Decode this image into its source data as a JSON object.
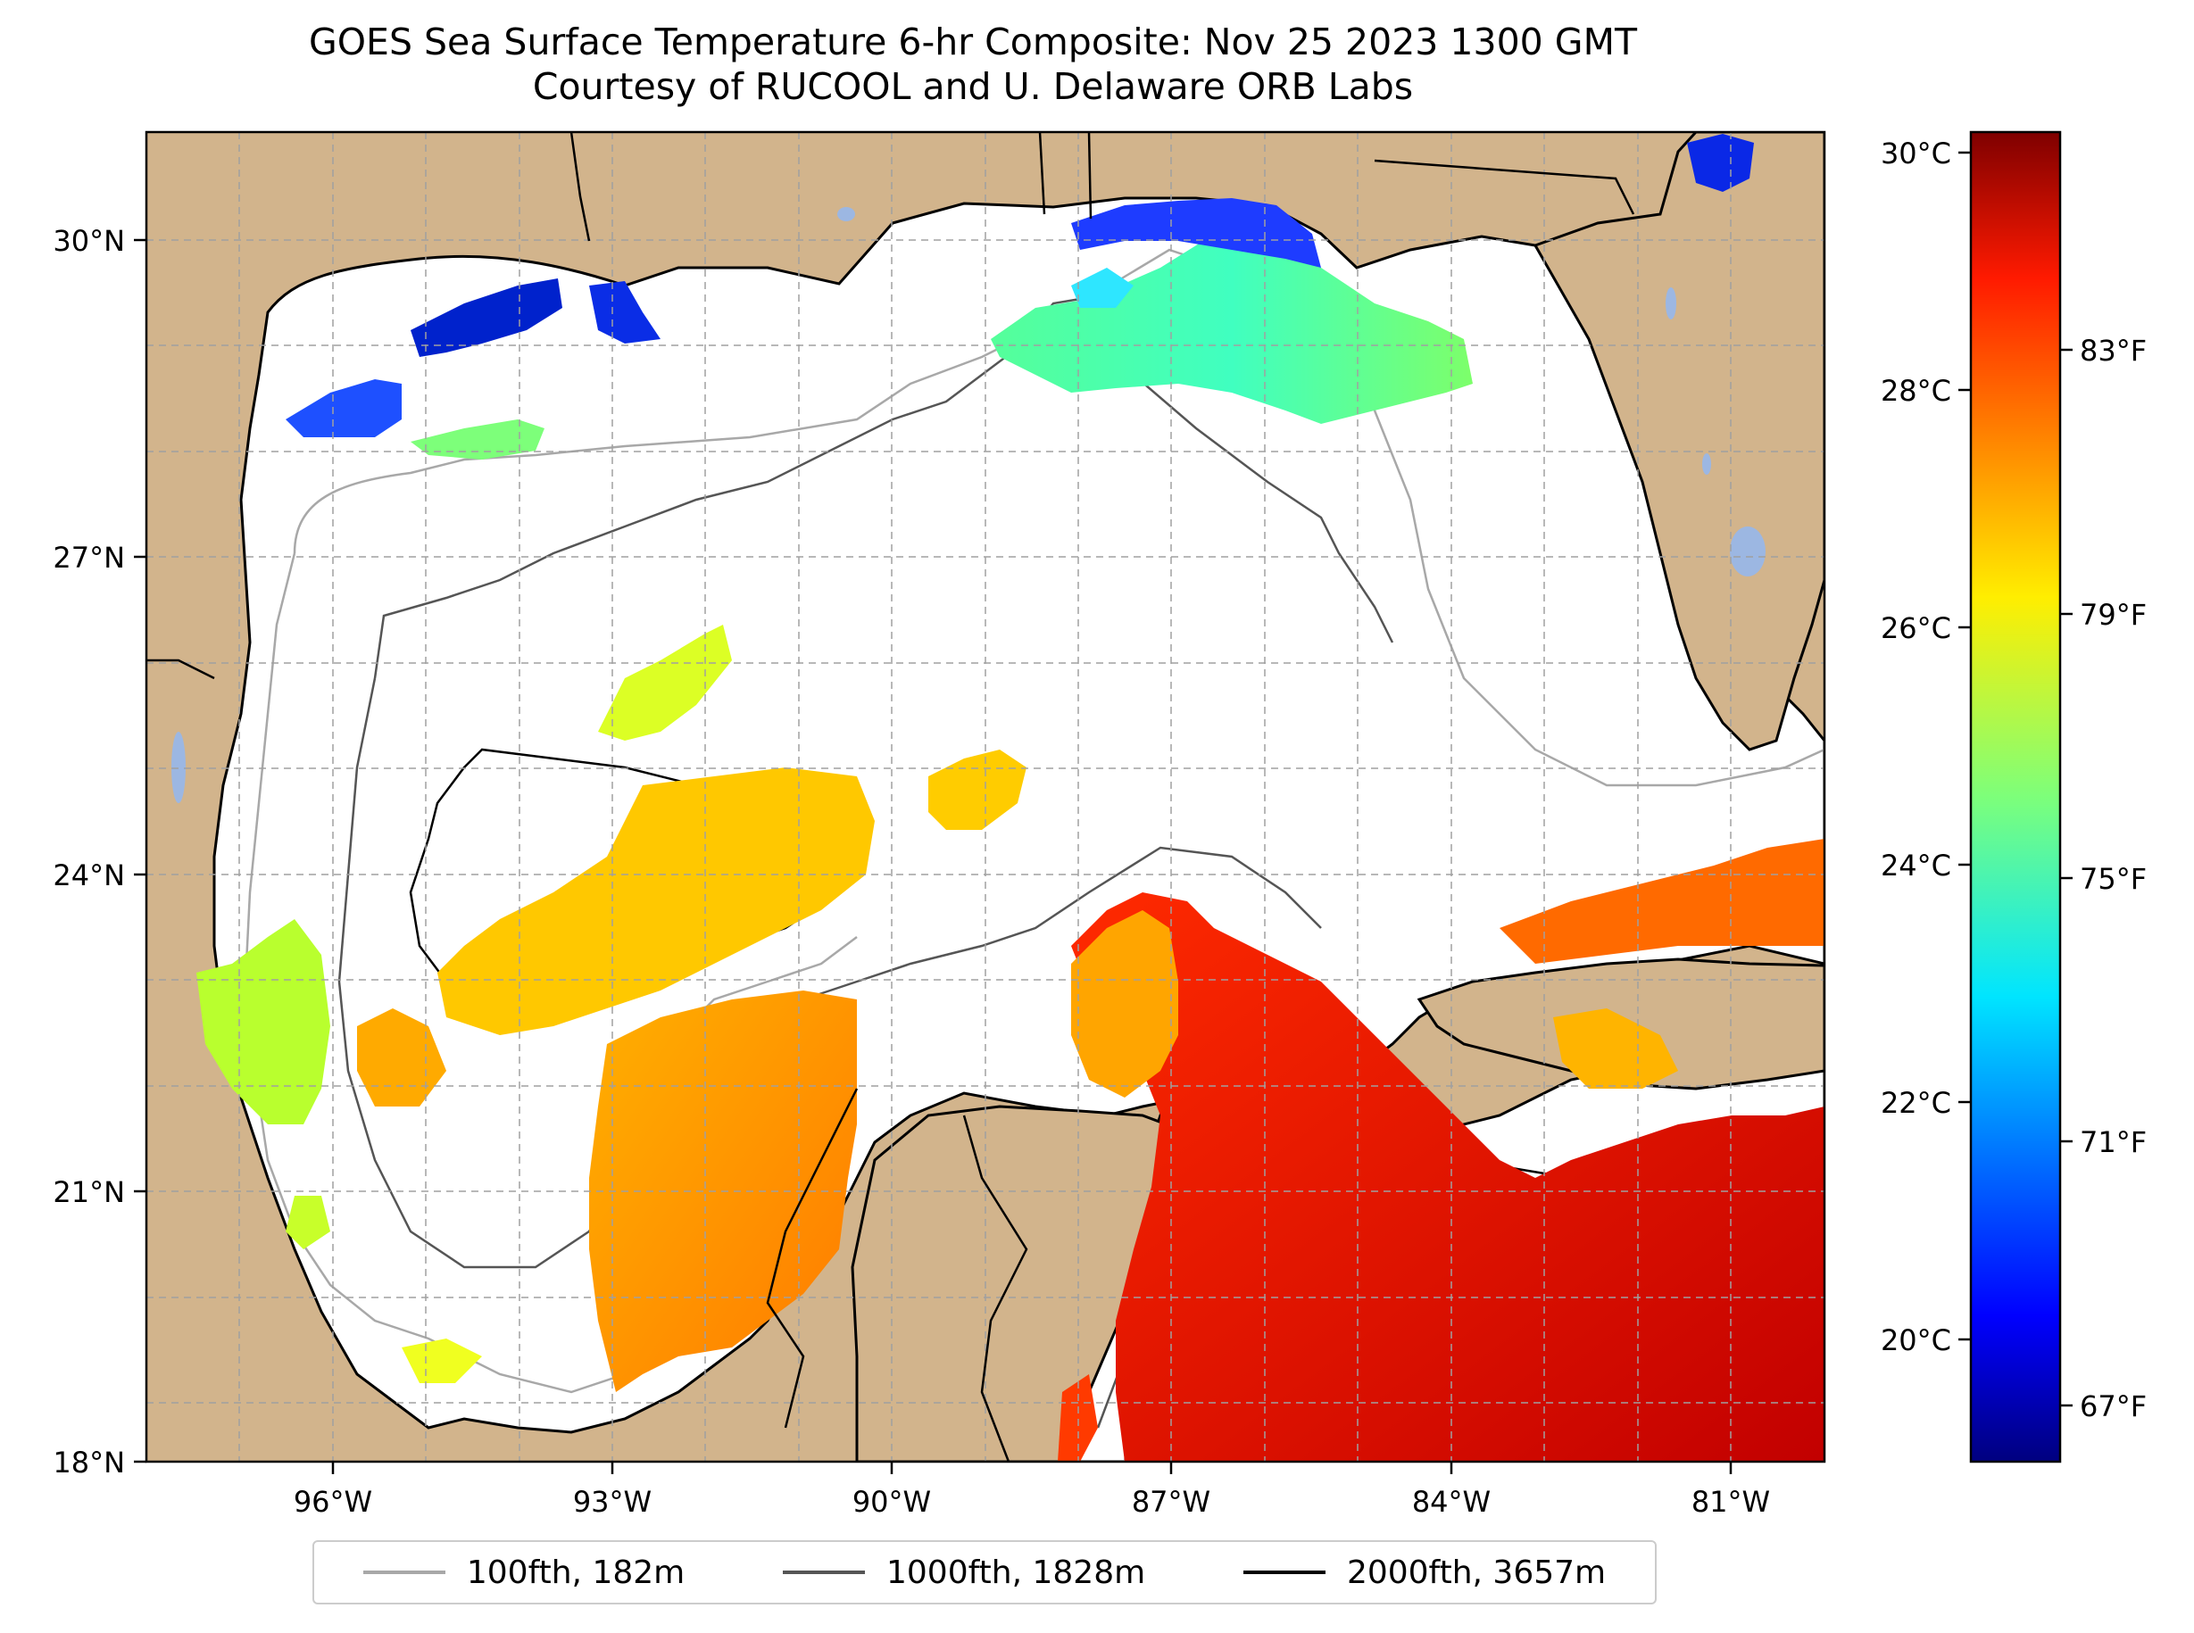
{
  "title": {
    "line1": "GOES Sea Surface Temperature 6-hr Composite: Nov 25 2023 1300 GMT",
    "line2": "Courtesy of RUCOOL and U. Delaware ORB Labs"
  },
  "map": {
    "lat_labels": [
      "30°N",
      "27°N",
      "24°N",
      "21°N",
      "18°N"
    ],
    "lon_labels": [
      "96°W",
      "93°W",
      "90°W",
      "87°W",
      "84°W",
      "81°W"
    ],
    "land_color": "#d2b48c",
    "ocean_color": "#ffffff",
    "lake_color": "#9cb7e2"
  },
  "colorbar": {
    "celsius_labels": [
      "30°C",
      "28°C",
      "26°C",
      "24°C",
      "22°C",
      "20°C"
    ],
    "fahrenheit_labels": [
      "83°F",
      "79°F",
      "75°F",
      "71°F",
      "67°F"
    ],
    "range_celsius": [
      18.9,
      30.1
    ],
    "colormap": "jet"
  },
  "legend": {
    "items": [
      {
        "label": "100fth, 182m",
        "color": "#a8a8a8"
      },
      {
        "label": "1000fth, 1828m",
        "color": "#555555"
      },
      {
        "label": "2000fth, 3657m",
        "color": "#000000"
      }
    ]
  }
}
